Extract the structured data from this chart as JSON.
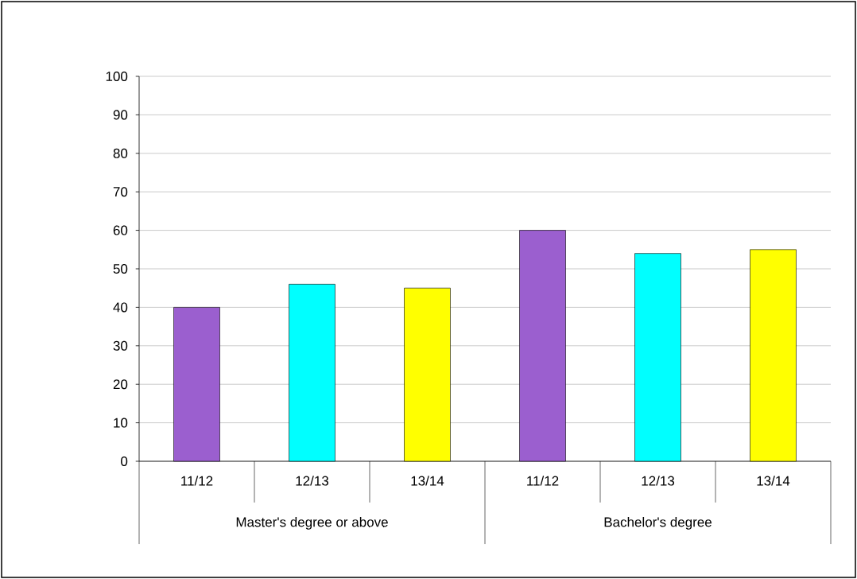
{
  "chart_data": {
    "type": "bar",
    "categories": [
      "11/12",
      "12/13",
      "13/14",
      "11/12",
      "12/13",
      "13/14"
    ],
    "values": [
      40,
      46,
      45,
      60,
      54,
      55
    ],
    "colors": [
      "#9b5fcf",
      "#00ffff",
      "#ffff00",
      "#9b5fcf",
      "#00ffff",
      "#ffff00"
    ],
    "ylim": [
      0,
      100
    ],
    "yticks": [
      0,
      10,
      20,
      30,
      40,
      50,
      60,
      70,
      80,
      90,
      100
    ],
    "grid": "y",
    "annotations": [
      "Master's degree or above",
      "Bachelor's degree"
    ]
  }
}
